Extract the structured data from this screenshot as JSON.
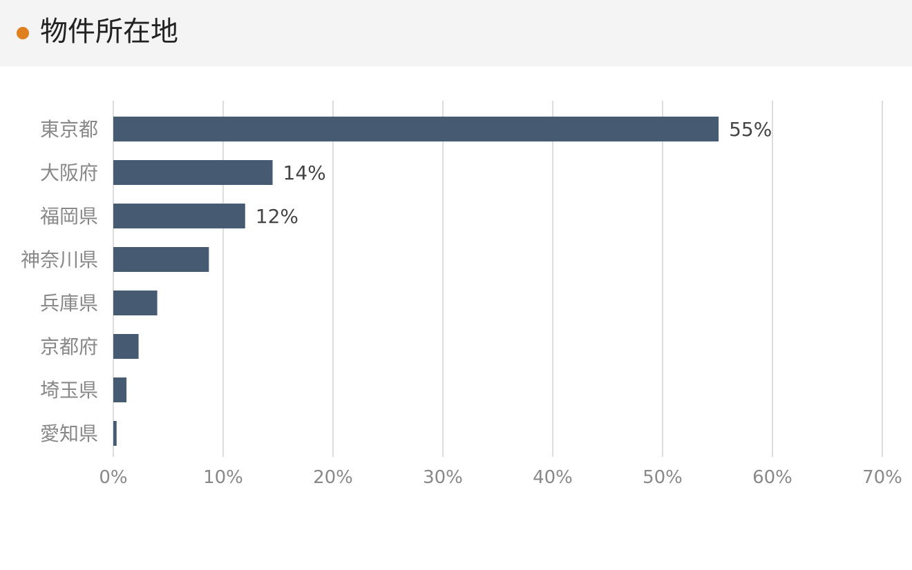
{
  "header": {
    "title": "物件所在地",
    "accent_color": "#e07f1f"
  },
  "chart_data": {
    "type": "bar",
    "orientation": "horizontal",
    "title": "物件所在地",
    "categories": [
      "東京都",
      "大阪府",
      "福岡県",
      "神奈川県",
      "兵庫県",
      "京都府",
      "埼玉県",
      "愛知県"
    ],
    "values": [
      55.1,
      14.5,
      12.0,
      8.7,
      4.0,
      2.3,
      1.2,
      0.3
    ],
    "data_labels": [
      "55%",
      "14%",
      "12%",
      "",
      "",
      "",
      "",
      ""
    ],
    "xlim": [
      0,
      70
    ],
    "x_ticks": [
      0,
      10,
      20,
      30,
      40,
      50,
      60,
      70
    ],
    "x_tick_labels": [
      "0%",
      "10%",
      "20%",
      "30%",
      "40%",
      "50%",
      "60%",
      "70%"
    ],
    "xlabel": "",
    "ylabel": "",
    "grid": "vertical",
    "bar_color": "#465b72",
    "grid_color": "#dddddd",
    "label_color": "#888888",
    "value_label_color": "#444444"
  }
}
